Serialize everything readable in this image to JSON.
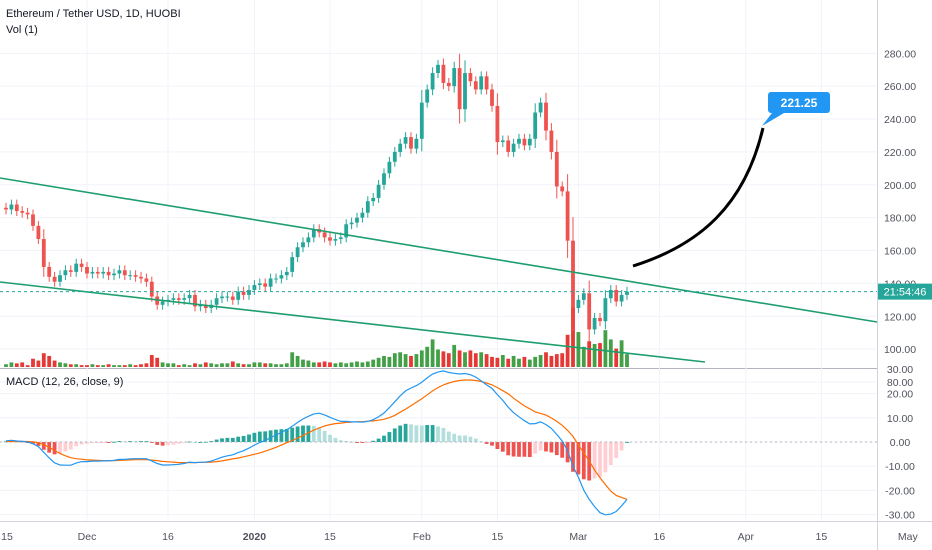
{
  "header": {
    "title": "Ethereum / Tether USD, 1D, HUOBI",
    "volume_label": "Vol (1)",
    "macd_label": "MACD (12, 26, close, 9)"
  },
  "colors": {
    "up": "#26a69a",
    "down": "#ef5350",
    "vol_up": "#43a047",
    "vol_down": "#e53935",
    "hist_pos_strong": "#26a69a",
    "hist_pos_weak": "#b2dfdb",
    "hist_neg_strong": "#ef5350",
    "hist_neg_weak": "#ffcdd2",
    "macd_line": "#2196f3",
    "signal_line": "#ff6d00",
    "trend": "#1e9e6e",
    "projection": "#000000",
    "price_label_bg": "#26a69a",
    "callout_bg": "#2196f3"
  },
  "chart_data": [
    {
      "type": "candlestick",
      "title": "Ethereum / Tether USD, 1D, HUOBI",
      "price_axis": {
        "ticks": [
          "80.00",
          "100.00",
          "120.00",
          "140.00",
          "160.00",
          "180.00",
          "200.00",
          "220.00",
          "240.00",
          "260.00",
          "280.00"
        ],
        "ylim": [
          75,
          295
        ]
      },
      "current_price_label": "21:54:46",
      "callout": "221.25",
      "time_ticks": [
        {
          "label": "15",
          "date": "2019-11-15"
        },
        {
          "label": "Dec",
          "date": "2019-12-01"
        },
        {
          "label": "16",
          "date": "2019-12-16"
        },
        {
          "label": "2020",
          "date": "2020-01-01"
        },
        {
          "label": "15",
          "date": "2020-01-15"
        },
        {
          "label": "Feb",
          "date": "2020-02-01"
        },
        {
          "label": "15",
          "date": "2020-02-15"
        },
        {
          "label": "Mar",
          "date": "2020-03-01"
        },
        {
          "label": "16",
          "date": "2020-03-16"
        },
        {
          "label": "Apr",
          "date": "2020-04-01"
        },
        {
          "label": "15",
          "date": "2020-04-15"
        },
        {
          "label": "May",
          "date": "2020-05-01"
        }
      ],
      "closes": [
        185,
        188,
        184,
        183,
        182,
        175,
        167,
        150,
        144,
        141,
        145,
        148,
        147,
        152,
        150,
        146,
        147,
        146,
        147,
        145,
        146,
        148,
        145,
        145,
        144,
        143,
        141,
        132,
        127,
        129,
        130,
        131,
        130,
        131,
        133,
        126,
        127,
        125,
        127,
        131,
        132,
        132,
        130,
        135,
        133,
        136,
        139,
        140,
        138,
        143,
        143,
        145,
        147,
        156,
        162,
        165,
        168,
        173,
        171,
        168,
        166,
        167,
        168,
        176,
        177,
        180,
        183,
        190,
        192,
        200,
        207,
        214,
        220,
        225,
        229,
        222,
        228,
        250,
        258,
        268,
        273,
        262,
        260,
        271,
        246,
        268,
        263,
        258,
        266,
        258,
        248,
        226,
        227,
        220,
        225,
        228,
        224,
        228,
        244,
        250,
        233,
        220,
        199,
        196,
        166,
        125,
        130,
        134,
        112,
        119,
        117,
        131,
        136,
        129,
        133,
        135
      ]
    },
    {
      "type": "bar",
      "title": "Vol (1)",
      "values": [
        3,
        5,
        4,
        5,
        2,
        9,
        7,
        15,
        12,
        7,
        5,
        4,
        3,
        3,
        2,
        2,
        3,
        2,
        2,
        3,
        2,
        2,
        2,
        3,
        2,
        3,
        4,
        13,
        10,
        5,
        4,
        4,
        2,
        3,
        2,
        4,
        3,
        5,
        4,
        3,
        4,
        4,
        6,
        4,
        3,
        3,
        5,
        5,
        4,
        4,
        3,
        3,
        4,
        16,
        12,
        8,
        7,
        5,
        5,
        6,
        5,
        4,
        5,
        4,
        5,
        6,
        5,
        6,
        8,
        10,
        12,
        11,
        15,
        16,
        14,
        12,
        14,
        18,
        22,
        30,
        19,
        17,
        15,
        24,
        18,
        16,
        18,
        15,
        16,
        14,
        11,
        10,
        13,
        9,
        12,
        9,
        11,
        8,
        11,
        13,
        16,
        12,
        14,
        15,
        35,
        65,
        38,
        22,
        28,
        25,
        26,
        40,
        30,
        20,
        29,
        14
      ]
    },
    {
      "type": "line",
      "title": "MACD (12, 26, close, 9)",
      "ticks": [
        "-30.00",
        "-20.00",
        "-10.00",
        "0.00",
        "10.00",
        "20.00",
        "30.00"
      ],
      "ylim": [
        -33,
        30
      ],
      "series": [
        {
          "values": [
            0.5,
            0.7,
            0.4,
            0.3,
            0,
            -0.7,
            -1.9,
            -4.3,
            -6.6,
            -8.6,
            -9.5,
            -9.6,
            -9.6,
            -8.7,
            -8.1,
            -8.1,
            -7.9,
            -7.9,
            -7.8,
            -7.8,
            -7.6,
            -7.2,
            -7.2,
            -7.0,
            -6.9,
            -6.9,
            -6.9,
            -7.8,
            -8.9,
            -9.5,
            -9.5,
            -9.4,
            -9.2,
            -8.9,
            -8.3,
            -8.5,
            -8.4,
            -8.3,
            -7.9,
            -7.1,
            -6.3,
            -5.7,
            -5.3,
            -4.4,
            -3.6,
            -2.5,
            -1.3,
            -0.2,
            0.6,
            1.8,
            2.9,
            4.0,
            5.1,
            6.5,
            8.1,
            9.5,
            10.6,
            11.6,
            11.9,
            11.2,
            10.2,
            9.3,
            8.5,
            8.5,
            8.3,
            8.3,
            8.2,
            8.5,
            9.2,
            10.4,
            12.0,
            14.2,
            16.6,
            19.1,
            21.1,
            22.3,
            23.3,
            24.7,
            26.5,
            28.1,
            28.9,
            29.4,
            28.7,
            28.4,
            28.1,
            28.3,
            27.8,
            26.8,
            25.3,
            23.6,
            22.1,
            19.6,
            17.2,
            14.4,
            12.1,
            10.4,
            8.8,
            7.5,
            7.6,
            8.3,
            7.2,
            5.6,
            3.1,
            0.4,
            -3.6,
            -10.0,
            -14.6,
            -19.9,
            -23.7,
            -26.7,
            -29.2,
            -30.1,
            -29.8,
            -28.7,
            -26.4,
            -23.7
          ]
        },
        {
          "values": [
            0.2,
            0.2,
            0.2,
            0.2,
            0.2,
            0.1,
            -0.3,
            -1.1,
            -2.2,
            -3.5,
            -4.7,
            -5.7,
            -6.5,
            -6.9,
            -7.1,
            -7.4,
            -7.5,
            -7.6,
            -7.7,
            -7.7,
            -7.7,
            -7.6,
            -7.5,
            -7.4,
            -7.3,
            -7.3,
            -7.3,
            -7.5,
            -7.7,
            -8.0,
            -8.2,
            -8.3,
            -8.5,
            -8.5,
            -8.5,
            -8.5,
            -8.4,
            -8.4,
            -8.3,
            -8.1,
            -7.8,
            -7.4,
            -7.0,
            -6.6,
            -6.1,
            -5.6,
            -5.1,
            -4.5,
            -3.8,
            -3.0,
            -2.2,
            -1.3,
            -0.3,
            0.6,
            1.7,
            2.7,
            3.8,
            4.9,
            5.8,
            6.6,
            7.2,
            7.6,
            7.8,
            8.1,
            8.2,
            8.4,
            8.4,
            8.6,
            8.7,
            9.0,
            9.4,
            10.1,
            11.0,
            12.3,
            13.6,
            15.0,
            16.4,
            17.9,
            19.5,
            21.1,
            22.5,
            23.6,
            24.4,
            25.0,
            25.4,
            25.6,
            25.6,
            25.4,
            25.0,
            24.4,
            23.6,
            22.5,
            21.2,
            19.9,
            18.1,
            16.5,
            14.9,
            13.7,
            12.4,
            11.8,
            11.1,
            9.9,
            8.5,
            6.9,
            4.8,
            2.3,
            -1.2,
            -4.5,
            -7.8,
            -11.6,
            -14.7,
            -17.6,
            -20.3,
            -22.1,
            -22.9,
            -23.7
          ]
        }
      ]
    }
  ]
}
